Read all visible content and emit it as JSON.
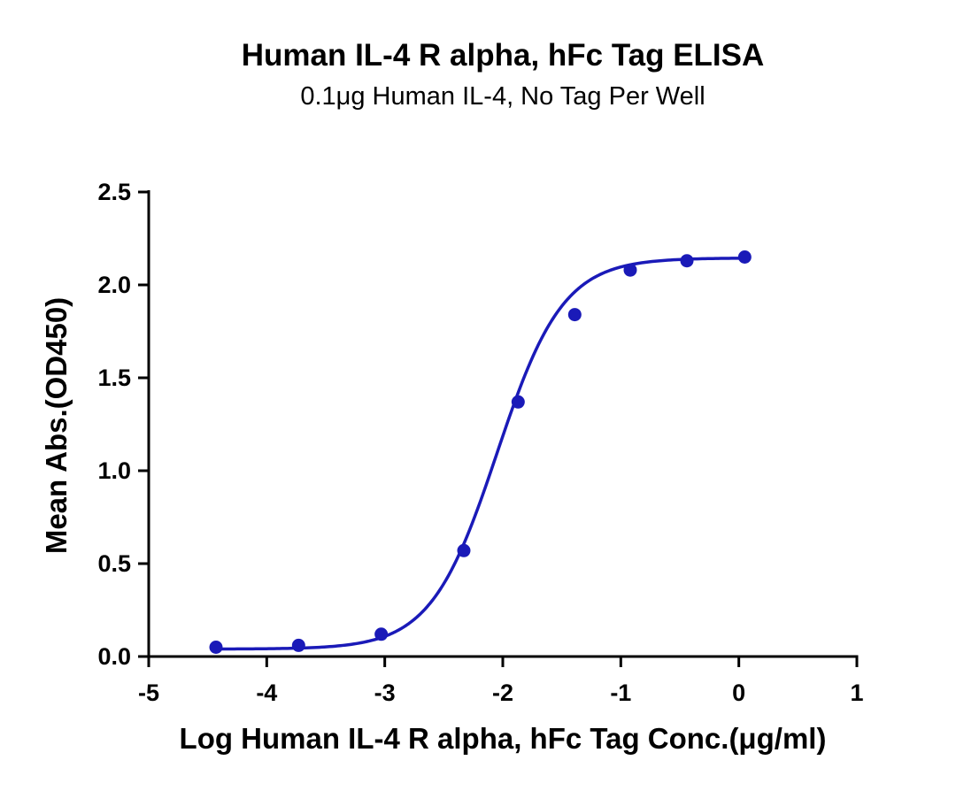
{
  "chart_data": {
    "type": "scatter",
    "title": "Human IL-4 R alpha, hFc Tag ELISA",
    "subtitle": "0.1μg Human IL-4, No Tag Per Well",
    "xlabel": "Log Human IL-4 R alpha, hFc Tag Conc.(μg/ml)",
    "ylabel": "Mean Abs.(OD450)",
    "xlim": [
      -5,
      1
    ],
    "ylim": [
      0,
      2.5
    ],
    "x_ticks": [
      "-5",
      "-4",
      "-3",
      "-2",
      "-1",
      "0",
      "1"
    ],
    "y_ticks": [
      "0.0",
      "0.5",
      "1.0",
      "1.5",
      "2.0",
      "2.5"
    ],
    "grid": false,
    "legend": "none",
    "color": "#1a1ab8",
    "series": [
      {
        "points": [
          {
            "x": -4.43,
            "y": 0.05
          },
          {
            "x": -3.73,
            "y": 0.06
          },
          {
            "x": -3.03,
            "y": 0.12
          },
          {
            "x": -2.33,
            "y": 0.57
          },
          {
            "x": -1.87,
            "y": 1.37
          },
          {
            "x": -1.39,
            "y": 1.84
          },
          {
            "x": -0.92,
            "y": 2.08
          },
          {
            "x": -0.44,
            "y": 2.13
          },
          {
            "x": 0.05,
            "y": 2.15
          }
        ],
        "fit": {
          "model": "4PL",
          "bottom": 0.04,
          "top": 2.145,
          "logEC50": -2.05,
          "hill": 1.55
        }
      }
    ]
  }
}
